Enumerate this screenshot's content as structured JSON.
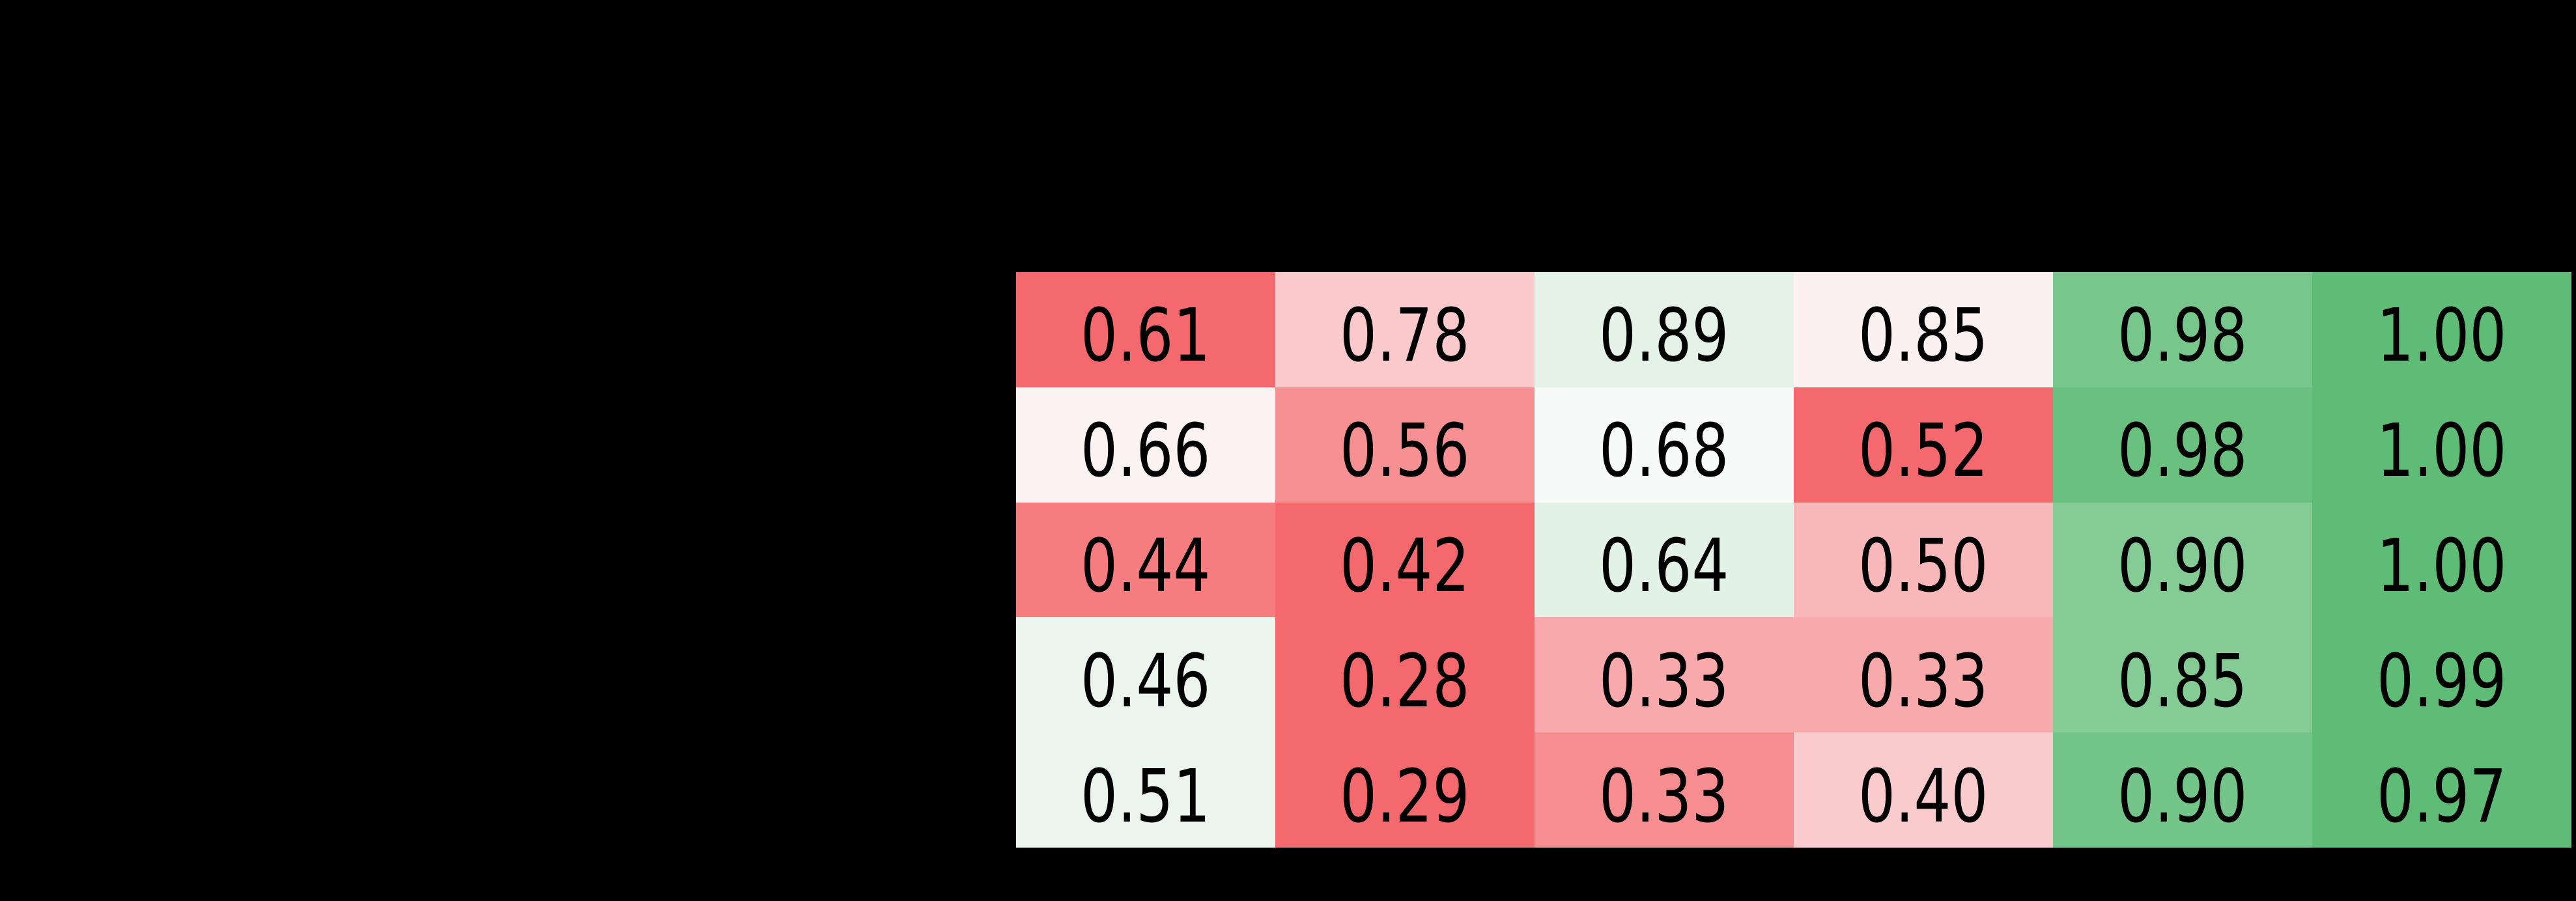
{
  "figure": {
    "background_color": "#000000",
    "title": "",
    "notes": "Only the heatmap cells are visible; surrounding labels/title are not rendered (black background)."
  },
  "chart_data": {
    "type": "heatmap",
    "rows": 5,
    "cols": 6,
    "values": [
      [
        0.61,
        0.78,
        0.89,
        0.85,
        0.98,
        1.0
      ],
      [
        0.66,
        0.56,
        0.68,
        0.52,
        0.98,
        1.0
      ],
      [
        0.44,
        0.42,
        0.64,
        0.5,
        0.9,
        1.0
      ],
      [
        0.46,
        0.28,
        0.33,
        0.33,
        0.85,
        0.99
      ],
      [
        0.51,
        0.29,
        0.33,
        0.4,
        0.9,
        0.97
      ]
    ],
    "cell_colors": [
      [
        "#f4696d",
        "#f9c9cb",
        "#e4f2e8",
        "#fbf1f1",
        "#77c68c",
        "#5fbc77"
      ],
      [
        "#fbf2f2",
        "#f69093",
        "#f7faf8",
        "#f4696d",
        "#69c07f",
        "#5fbc77"
      ],
      [
        "#f57d80",
        "#f4696d",
        "#e2f2e6",
        "#f8b7b9",
        "#84cb96",
        "#5fbc77"
      ],
      [
        "#ebf5ee",
        "#f4696d",
        "#f8a9ab",
        "#f8a9ab",
        "#84cb96",
        "#5fbc77"
      ],
      [
        "#ebf5ee",
        "#f4696d",
        "#f68d90",
        "#f9cbcc",
        "#74c589",
        "#5fbc77"
      ]
    ],
    "value_format_decimals": 2,
    "text_color": "#000000",
    "value_range": [
      0,
      1
    ],
    "colormap": {
      "low": "#f4696d",
      "center": "#fcfcfc",
      "high": "#5fbc77",
      "normalization": "diverging red-white-green, scaled independently per row"
    },
    "gridlines": false,
    "colorbar": false,
    "axis_tick_labels_visible": false,
    "title": "",
    "xlabel": "",
    "ylabel": ""
  }
}
